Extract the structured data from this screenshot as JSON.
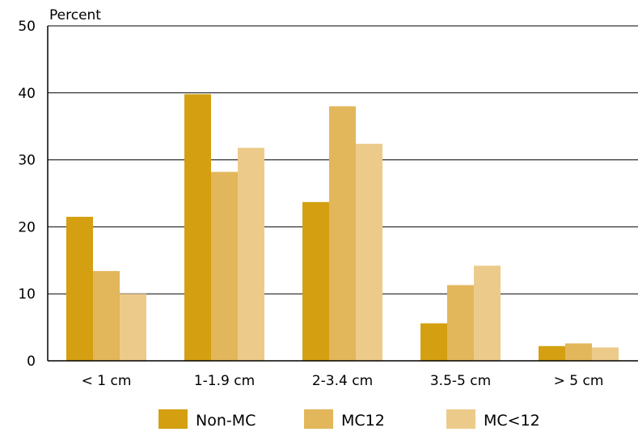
{
  "chart_data": {
    "type": "bar",
    "ylabel": "Percent",
    "ylim": [
      0,
      50
    ],
    "yticks": [
      0,
      10,
      20,
      30,
      40,
      50
    ],
    "grid": true,
    "legend_position": "bottom",
    "categories": [
      "< 1 cm",
      "1-1.9 cm",
      "2-3.4 cm",
      "3.5-5 cm",
      "> 5 cm"
    ],
    "series": [
      {
        "name": "Non-MC",
        "color": "#d4a011",
        "values": [
          21.5,
          39.8,
          23.7,
          5.6,
          2.2
        ]
      },
      {
        "name": "MC12",
        "color": "#e2b65b",
        "values": [
          13.4,
          28.2,
          38.0,
          11.3,
          2.6
        ]
      },
      {
        "name": "MC<12",
        "color": "#eccb8a",
        "values": [
          10.0,
          31.8,
          32.4,
          14.2,
          2.0
        ]
      }
    ]
  }
}
